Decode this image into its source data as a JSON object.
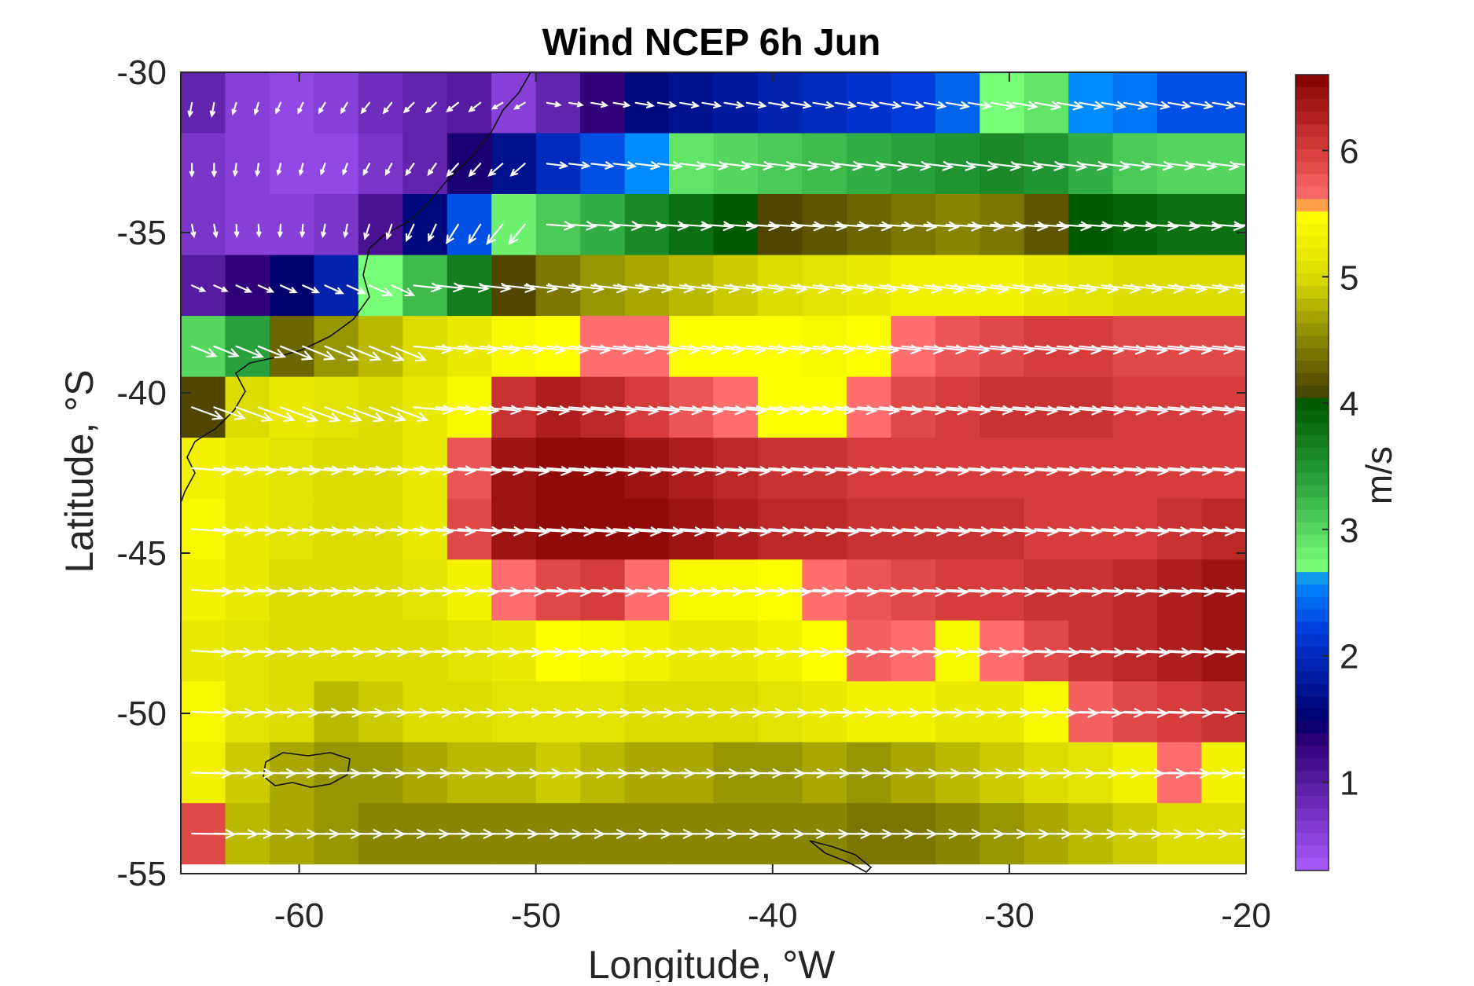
{
  "chart_data": {
    "type": "heatmap",
    "title": "Wind NCEP 6h Jun",
    "xlabel": "Longitude, °W",
    "ylabel": "Latitude, °S",
    "xlim": [
      -65,
      -20
    ],
    "ylim": [
      -55,
      -30
    ],
    "xticks": [
      -60,
      -50,
      -40,
      -30,
      -20
    ],
    "yticks": [
      -55,
      -50,
      -45,
      -40,
      -35,
      -30
    ],
    "grid": false,
    "colorbar": {
      "label": "m/s",
      "range": [
        0.3,
        6.6
      ],
      "ticks": [
        1,
        2,
        3,
        4,
        5,
        6
      ]
    },
    "field": {
      "description_of_values": "wind speed magnitude (m/s) with wind direction arrows",
      "lon_step": 1.875,
      "lat_step": 1.9,
      "speed_grid": [
        [
          0.9,
          0.6,
          0.5,
          0.6,
          0.8,
          0.9,
          1.0,
          0.6,
          0.9,
          1.3,
          1.6,
          1.7,
          1.8,
          1.9,
          2.0,
          2.1,
          2.2,
          2.4,
          2.7,
          2.9,
          2.6,
          2.5,
          2.3,
          2.3
        ],
        [
          0.7,
          0.6,
          0.5,
          0.5,
          0.7,
          0.9,
          1.4,
          1.7,
          2.0,
          2.3,
          2.6,
          2.9,
          3.0,
          3.1,
          3.2,
          3.3,
          3.4,
          3.5,
          3.6,
          3.5,
          3.3,
          3.1,
          3.0,
          3.0
        ],
        [
          0.7,
          0.6,
          0.6,
          0.7,
          1.1,
          1.6,
          2.3,
          2.8,
          3.1,
          3.3,
          3.6,
          3.8,
          4.0,
          4.1,
          4.2,
          4.3,
          4.4,
          4.5,
          4.4,
          4.2,
          4.0,
          3.9,
          3.8,
          3.8
        ],
        [
          1.0,
          1.3,
          1.5,
          1.9,
          2.7,
          3.2,
          3.7,
          4.1,
          4.4,
          4.6,
          4.7,
          4.8,
          4.9,
          5.0,
          5.1,
          5.2,
          5.3,
          5.3,
          5.3,
          5.2,
          5.1,
          5.0,
          5.0,
          5.0
        ],
        [
          3.0,
          3.4,
          4.3,
          4.6,
          4.8,
          5.0,
          5.2,
          5.4,
          5.5,
          5.6,
          5.6,
          5.5,
          5.5,
          5.5,
          5.4,
          5.5,
          5.6,
          5.8,
          5.9,
          6.0,
          6.0,
          5.9,
          5.9,
          5.9
        ],
        [
          4.1,
          5.0,
          5.2,
          5.1,
          5.0,
          5.2,
          5.4,
          6.1,
          6.3,
          6.2,
          6.0,
          5.8,
          5.6,
          5.5,
          5.5,
          5.6,
          5.9,
          6.0,
          6.1,
          6.1,
          6.1,
          6.0,
          6.0,
          6.0
        ],
        [
          5.3,
          5.2,
          5.1,
          5.0,
          5.0,
          5.2,
          5.8,
          6.4,
          6.5,
          6.5,
          6.4,
          6.3,
          6.2,
          6.1,
          6.1,
          6.0,
          6.0,
          6.0,
          6.0,
          6.0,
          6.0,
          6.0,
          6.0,
          6.0
        ],
        [
          5.4,
          5.2,
          5.1,
          5.0,
          5.0,
          5.2,
          5.9,
          6.4,
          6.5,
          6.5,
          6.5,
          6.4,
          6.3,
          6.2,
          6.2,
          6.1,
          6.1,
          6.1,
          6.1,
          6.0,
          6.0,
          6.0,
          6.1,
          6.2
        ],
        [
          5.3,
          5.2,
          5.0,
          5.0,
          5.0,
          5.1,
          5.3,
          5.6,
          5.9,
          6.0,
          5.6,
          5.4,
          5.4,
          5.5,
          5.6,
          5.8,
          5.9,
          6.0,
          6.0,
          6.1,
          6.1,
          6.2,
          6.3,
          6.4
        ],
        [
          5.2,
          5.1,
          5.0,
          5.0,
          5.0,
          5.0,
          5.1,
          5.2,
          5.5,
          5.4,
          5.3,
          5.2,
          5.2,
          5.3,
          5.5,
          5.7,
          5.6,
          5.4,
          5.6,
          5.9,
          6.1,
          6.2,
          6.3,
          6.4
        ],
        [
          5.4,
          5.1,
          5.0,
          4.8,
          4.9,
          5.0,
          5.0,
          5.1,
          5.1,
          5.1,
          5.0,
          5.0,
          5.0,
          5.1,
          5.2,
          5.3,
          5.3,
          5.2,
          5.2,
          5.4,
          5.7,
          5.9,
          6.0,
          6.1
        ],
        [
          5.3,
          4.9,
          4.7,
          4.6,
          4.6,
          4.7,
          4.8,
          4.8,
          4.9,
          4.8,
          4.7,
          4.7,
          4.6,
          4.6,
          4.7,
          4.6,
          4.7,
          4.8,
          4.9,
          5.0,
          5.1,
          5.3,
          5.6,
          5.3
        ],
        [
          5.9,
          4.8,
          4.7,
          4.6,
          4.5,
          4.5,
          4.5,
          4.5,
          4.5,
          4.5,
          4.5,
          4.5,
          4.5,
          4.5,
          4.5,
          4.4,
          4.4,
          4.5,
          4.6,
          4.7,
          4.8,
          4.9,
          5.0,
          5.0
        ]
      ]
    }
  }
}
